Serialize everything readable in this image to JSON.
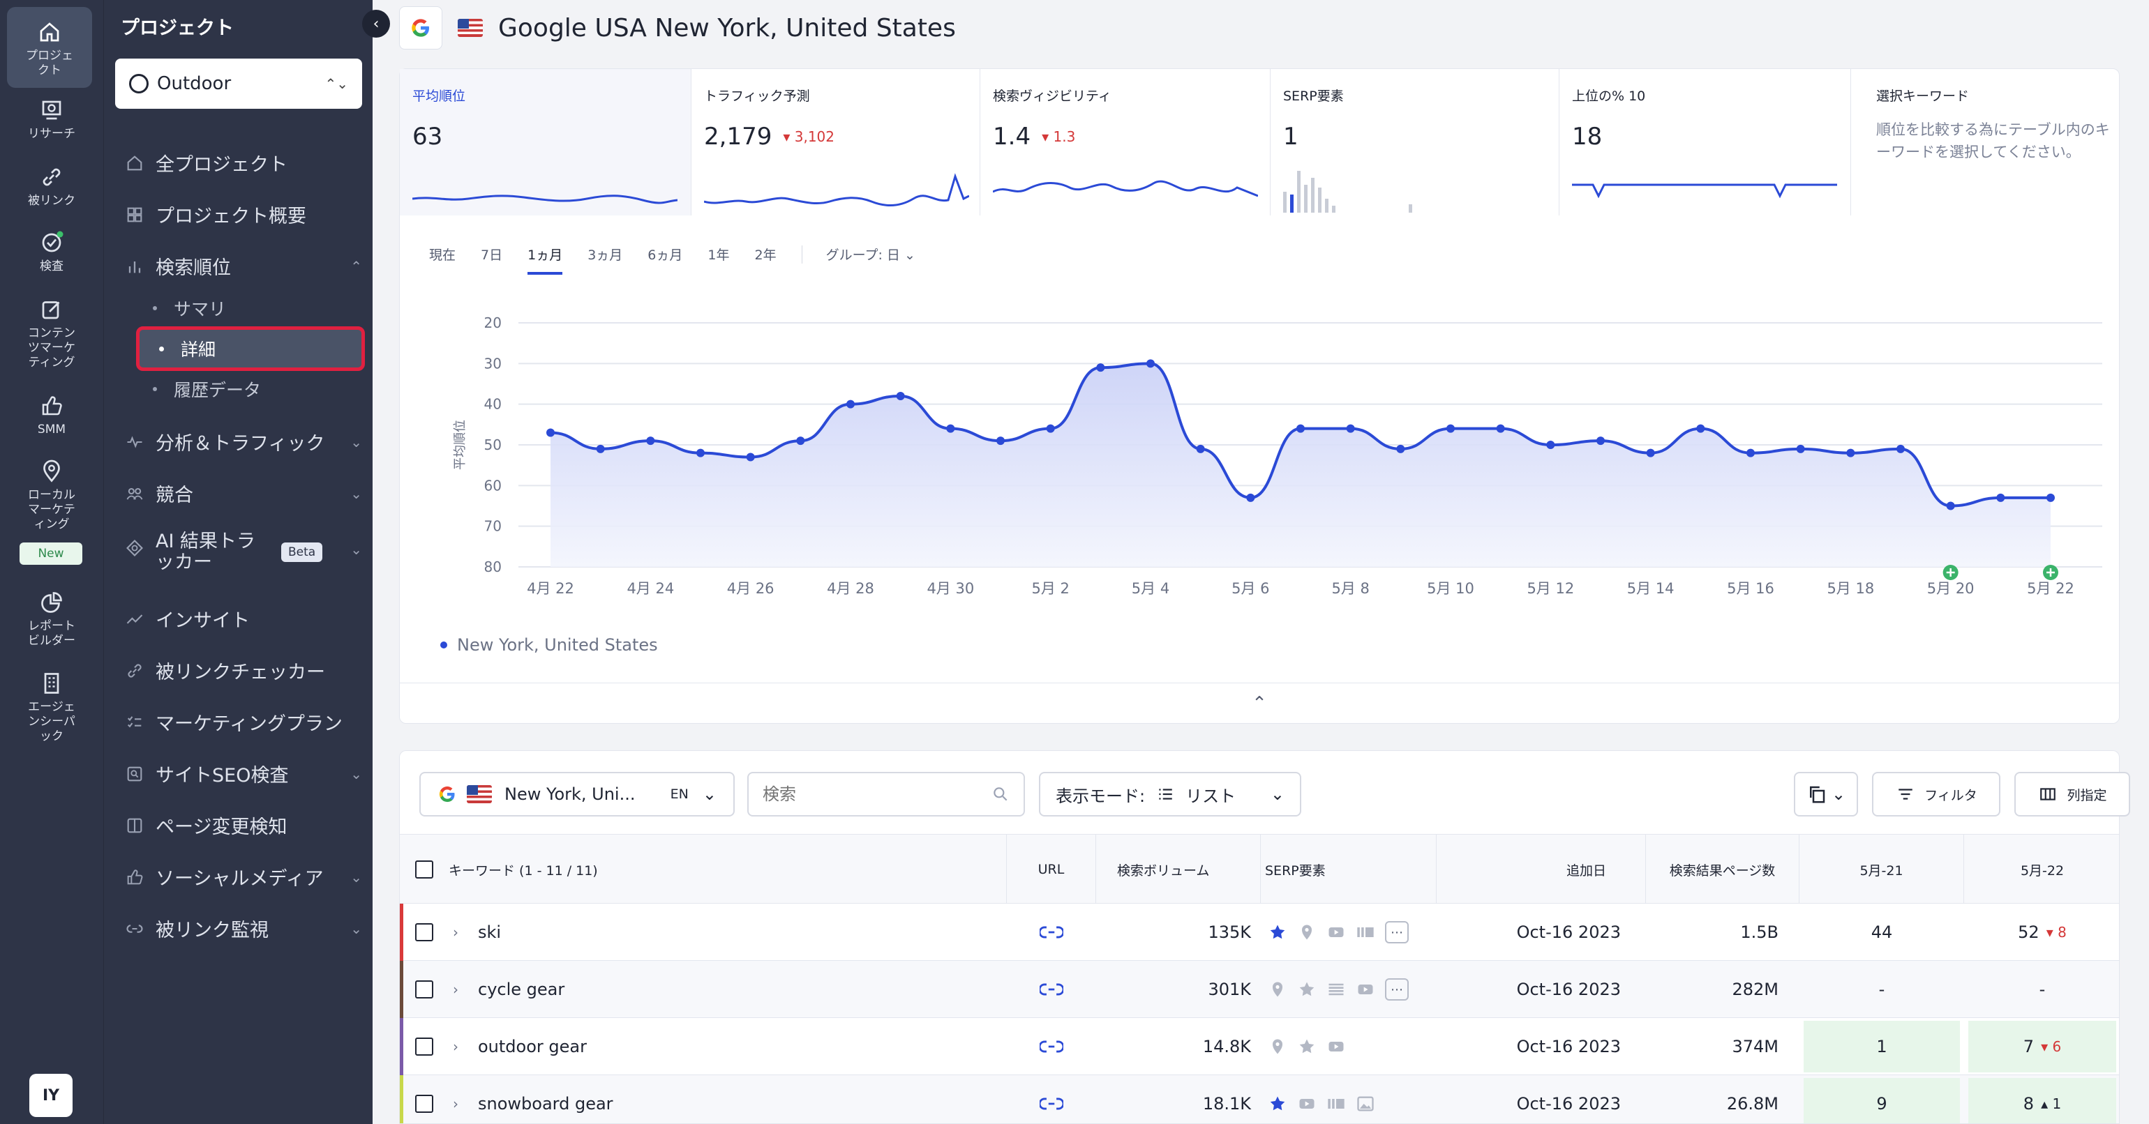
{
  "rail": {
    "items": [
      {
        "label": "プロジェクト",
        "icon": "home-icon"
      },
      {
        "label": "リサーチ",
        "icon": "research-icon"
      },
      {
        "label": "被リンク",
        "icon": "link-icon"
      },
      {
        "label": "検査",
        "icon": "check-circle-icon"
      },
      {
        "label": "コンテンツマーケティング",
        "icon": "edit-icon"
      },
      {
        "label": "SMM",
        "icon": "thumbs-up-icon"
      },
      {
        "label": "ローカルマーケティング",
        "icon": "map-pin-icon"
      },
      {
        "label": "レポートビルダー",
        "icon": "pie-chart-icon"
      },
      {
        "label": "エージェンシーパック",
        "icon": "building-icon"
      }
    ],
    "new_badge": "New",
    "avatar": "IY"
  },
  "sidebar": {
    "title": "プロジェクト",
    "project": "Outdoor",
    "nav": [
      {
        "label": "全プロジェクト"
      },
      {
        "label": "プロジェクト概要"
      },
      {
        "label": "検索順位"
      },
      {
        "label": "分析＆トラフィック"
      },
      {
        "label": "競合"
      },
      {
        "label": "AI 結果トラッカー",
        "badge": "Beta"
      },
      {
        "label": "インサイト"
      },
      {
        "label": "被リンクチェッカー"
      },
      {
        "label": "マーケティングプラン"
      },
      {
        "label": "サイトSEO検査"
      },
      {
        "label": "ページ変更検知"
      },
      {
        "label": "ソーシャルメディア"
      },
      {
        "label": "被リンク監視"
      }
    ],
    "sub": [
      "サマリ",
      "詳細",
      "履歴データ"
    ]
  },
  "header": {
    "title": "Google USA New York, United States"
  },
  "metrics": [
    {
      "label": "平均順位",
      "value": "63",
      "delta": ""
    },
    {
      "label": "トラフィック予測",
      "value": "2,179",
      "delta": "3,102"
    },
    {
      "label": "検索ヴィジビリティ",
      "value": "1.4",
      "delta": "1.3"
    },
    {
      "label": "SERP要素",
      "value": "1",
      "delta": ""
    },
    {
      "label": "上位の% 10",
      "value": "18",
      "delta": ""
    }
  ],
  "selected_keywords": {
    "label": "選択キーワード",
    "note": "順位を比較する為にテーブル内のキーワードを選択してください。"
  },
  "ranges": [
    "現在",
    "7日",
    "1ヵ月",
    "3ヵ月",
    "6ヵ月",
    "1年",
    "2年"
  ],
  "group_by": "グループ: 日",
  "chart_data": {
    "type": "line",
    "ylabel": "平均順位",
    "ylim": [
      20,
      80
    ],
    "y_inverted": true,
    "yticks": [
      20,
      30,
      40,
      50,
      60,
      70,
      80
    ],
    "x_tick_labels": [
      "4月 22",
      "4月 24",
      "4月 26",
      "4月 28",
      "4月 30",
      "5月 2",
      "5月 4",
      "5月 6",
      "5月 8",
      "5月 10",
      "5月 12",
      "5月 14",
      "5月 16",
      "5月 18",
      "5月 20",
      "5月 22"
    ],
    "x": [
      "4月 22",
      "4月 23",
      "4月 24",
      "4月 25",
      "4月 26",
      "4月 27",
      "4月 28",
      "4月 29",
      "4月 30",
      "5月 1",
      "5月 2",
      "5月 3",
      "5月 4",
      "5月 5",
      "5月 6",
      "5月 7",
      "5月 8",
      "5月 9",
      "5月 10",
      "5月 11",
      "5月 12",
      "5月 13",
      "5月 14",
      "5月 15",
      "5月 16",
      "5月 17",
      "5月 18",
      "5月 19",
      "5月 20",
      "5月 21",
      "5月 22"
    ],
    "series": [
      {
        "name": "New York, United States",
        "values": [
          47,
          51,
          49,
          52,
          53,
          49,
          40,
          38,
          46,
          49,
          46,
          31,
          30,
          51,
          63,
          46,
          46,
          51,
          46,
          46,
          50,
          49,
          52,
          46,
          52,
          51,
          52,
          51,
          65,
          63,
          63
        ]
      }
    ],
    "markers_at": [
      "5月 20",
      "5月 22"
    ],
    "color": "#2b4ad6"
  },
  "toolbar": {
    "engine": "New York, Uni...",
    "lang": "EN",
    "search_placeholder": "検索",
    "view_label": "表示モード:",
    "view_value": "リスト",
    "filter": "フィルタ",
    "columns": "列指定"
  },
  "table": {
    "headers": {
      "keyword": "キーワード (1 - 11 / 11)",
      "url": "URL",
      "volume": "検索ボリューム",
      "serp": "SERP要素",
      "added": "追加日",
      "results": "検索結果ページ数",
      "d21": "5月-21",
      "d22": "5月-22"
    },
    "rows": [
      {
        "keyword": "ski",
        "volume": "135K",
        "added": "Oct-16 2023",
        "results": "1.5B",
        "d21": "44",
        "d22": "52",
        "d22_delta": "8",
        "d22_dir": "down",
        "bar": "#d93a3a"
      },
      {
        "keyword": "cycle gear",
        "volume": "301K",
        "added": "Oct-16 2023",
        "results": "282M",
        "d21": "-",
        "d22": "-",
        "d22_delta": "",
        "d22_dir": "",
        "bar": "#6b4a3a"
      },
      {
        "keyword": "outdoor gear",
        "volume": "14.8K",
        "added": "Oct-16 2023",
        "results": "374M",
        "d21": "1",
        "d22": "7",
        "d22_delta": "6",
        "d22_dir": "down",
        "bar": "#7b5aa8"
      },
      {
        "keyword": "snowboard gear",
        "volume": "18.1K",
        "added": "Oct-16 2023",
        "results": "26.8M",
        "d21": "9",
        "d22": "8",
        "d22_delta": "1",
        "d22_dir": "up",
        "bar": "#c8d84a"
      }
    ]
  }
}
